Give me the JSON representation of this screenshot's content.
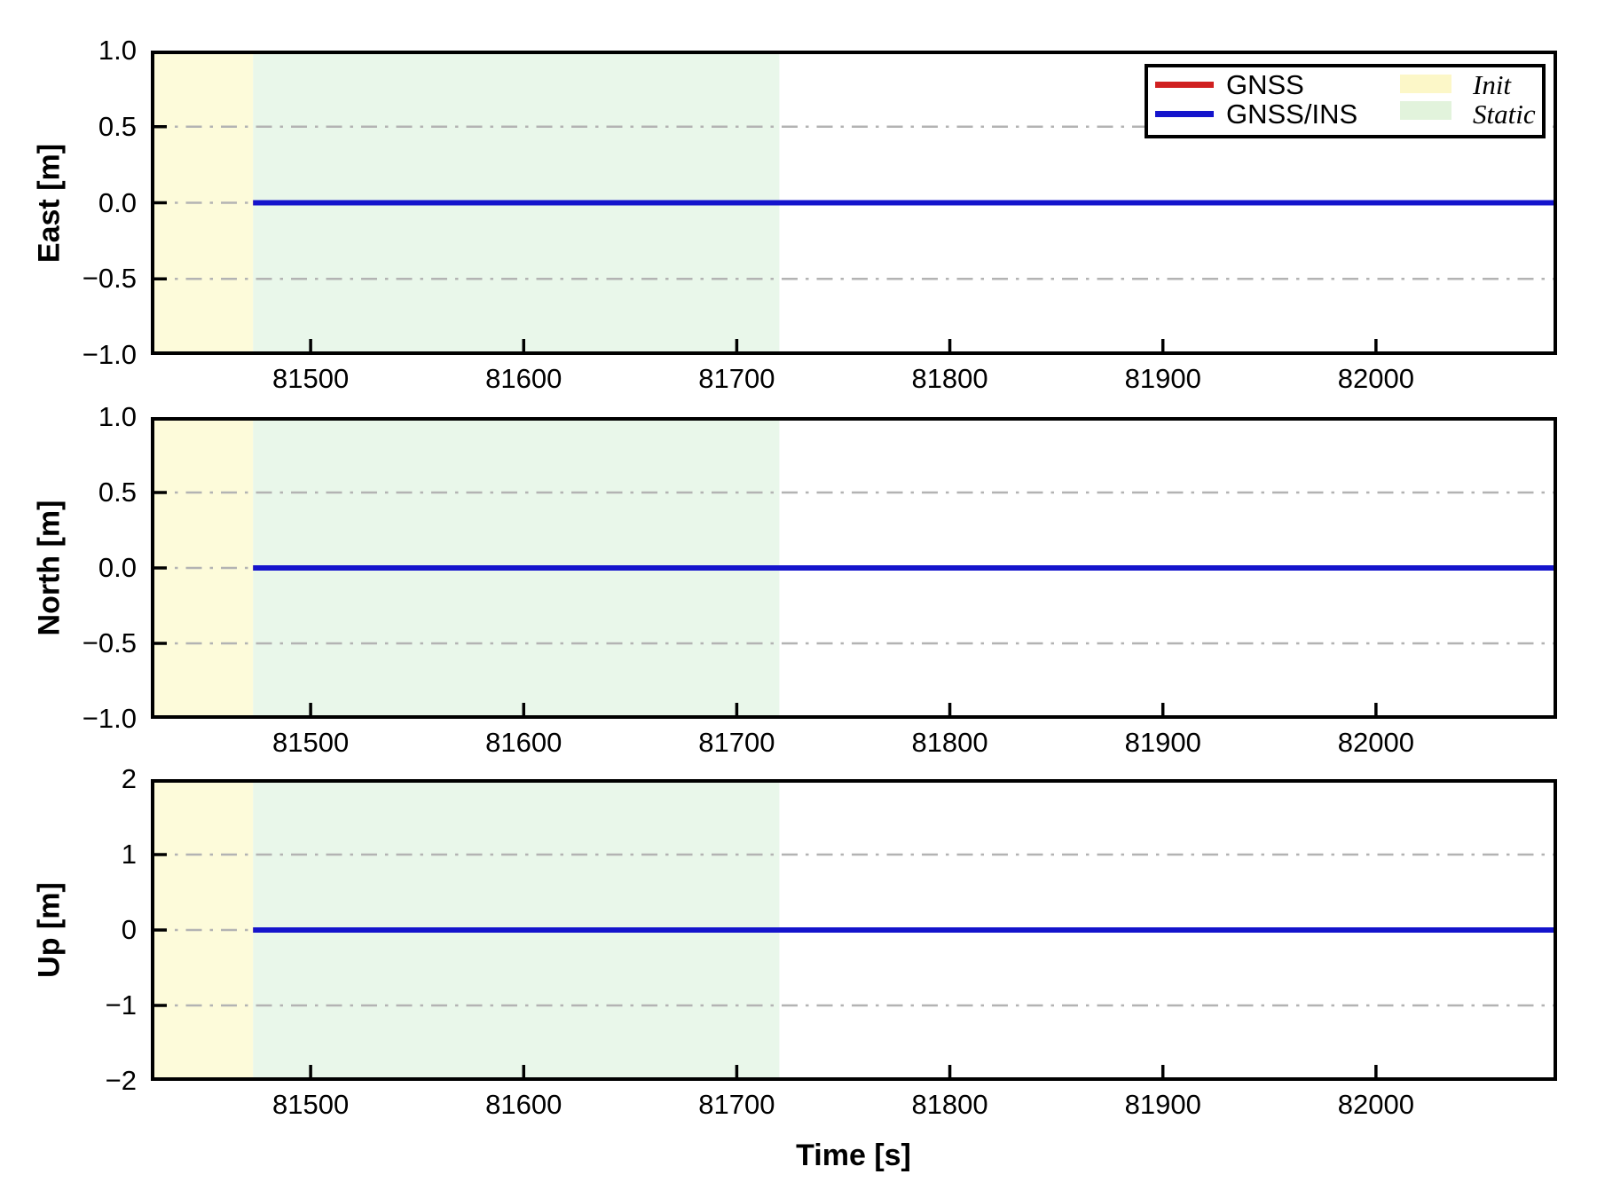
{
  "chart_data": {
    "type": "line",
    "title": "",
    "xlabel": "Time [s]",
    "xlim": [
      81425,
      82085
    ],
    "x_ticks": [
      {
        "value": 81500,
        "label": "81500"
      },
      {
        "value": 81600,
        "label": "81600"
      },
      {
        "value": 81700,
        "label": "81700"
      },
      {
        "value": 81800,
        "label": "81800"
      },
      {
        "value": 81900,
        "label": "81900"
      },
      {
        "value": 82000,
        "label": "82000"
      }
    ],
    "grid": {
      "visible": true,
      "style": "dash-dot",
      "color": "#b3b3b3",
      "orientation": "horizontal"
    },
    "legend_position": "upper right",
    "subplots": [
      {
        "name": "east",
        "ylabel": "East [m]",
        "ylim": [
          -1.0,
          1.0
        ],
        "y_ticks": [
          {
            "value": 1.0,
            "label": "1.0"
          },
          {
            "value": 0.5,
            "label": "0.5"
          },
          {
            "value": 0.0,
            "label": "0.0"
          },
          {
            "value": -0.5,
            "label": "−0.5"
          },
          {
            "value": -1.0,
            "label": "−1.0"
          }
        ],
        "grid_y": [
          0.5,
          0.0,
          -0.5
        ]
      },
      {
        "name": "north",
        "ylabel": "North [m]",
        "ylim": [
          -1.0,
          1.0
        ],
        "y_ticks": [
          {
            "value": 1.0,
            "label": "1.0"
          },
          {
            "value": 0.5,
            "label": "0.5"
          },
          {
            "value": 0.0,
            "label": "0.0"
          },
          {
            "value": -0.5,
            "label": "−0.5"
          },
          {
            "value": -1.0,
            "label": "−1.0"
          }
        ],
        "grid_y": [
          0.5,
          0.0,
          -0.5
        ]
      },
      {
        "name": "up",
        "ylabel": "Up [m]",
        "ylim": [
          -2,
          2
        ],
        "y_ticks": [
          {
            "value": 2,
            "label": "2"
          },
          {
            "value": 1,
            "label": "1"
          },
          {
            "value": 0,
            "label": "0"
          },
          {
            "value": -1,
            "label": "−1"
          },
          {
            "value": -2,
            "label": "−2"
          }
        ],
        "grid_y": [
          1,
          0,
          -1
        ]
      }
    ],
    "regions": [
      {
        "name": "Init",
        "x_start": 81425,
        "x_end": 81473,
        "fill": "#fdfbda",
        "legend_fill": "#fcf7c8"
      },
      {
        "name": "Static",
        "x_start": 81473,
        "x_end": 81720,
        "fill": "#e9f7ea",
        "legend_fill": "#e2f3dc"
      }
    ],
    "series": [
      {
        "name": "GNSS",
        "color": "#d02020",
        "x_start": 81473,
        "x_end": 82085,
        "value": 0.0
      },
      {
        "name": "GNSS/INS",
        "color": "#1414cc",
        "x_start": 81473,
        "x_end": 82085,
        "value": 0.0
      }
    ]
  }
}
